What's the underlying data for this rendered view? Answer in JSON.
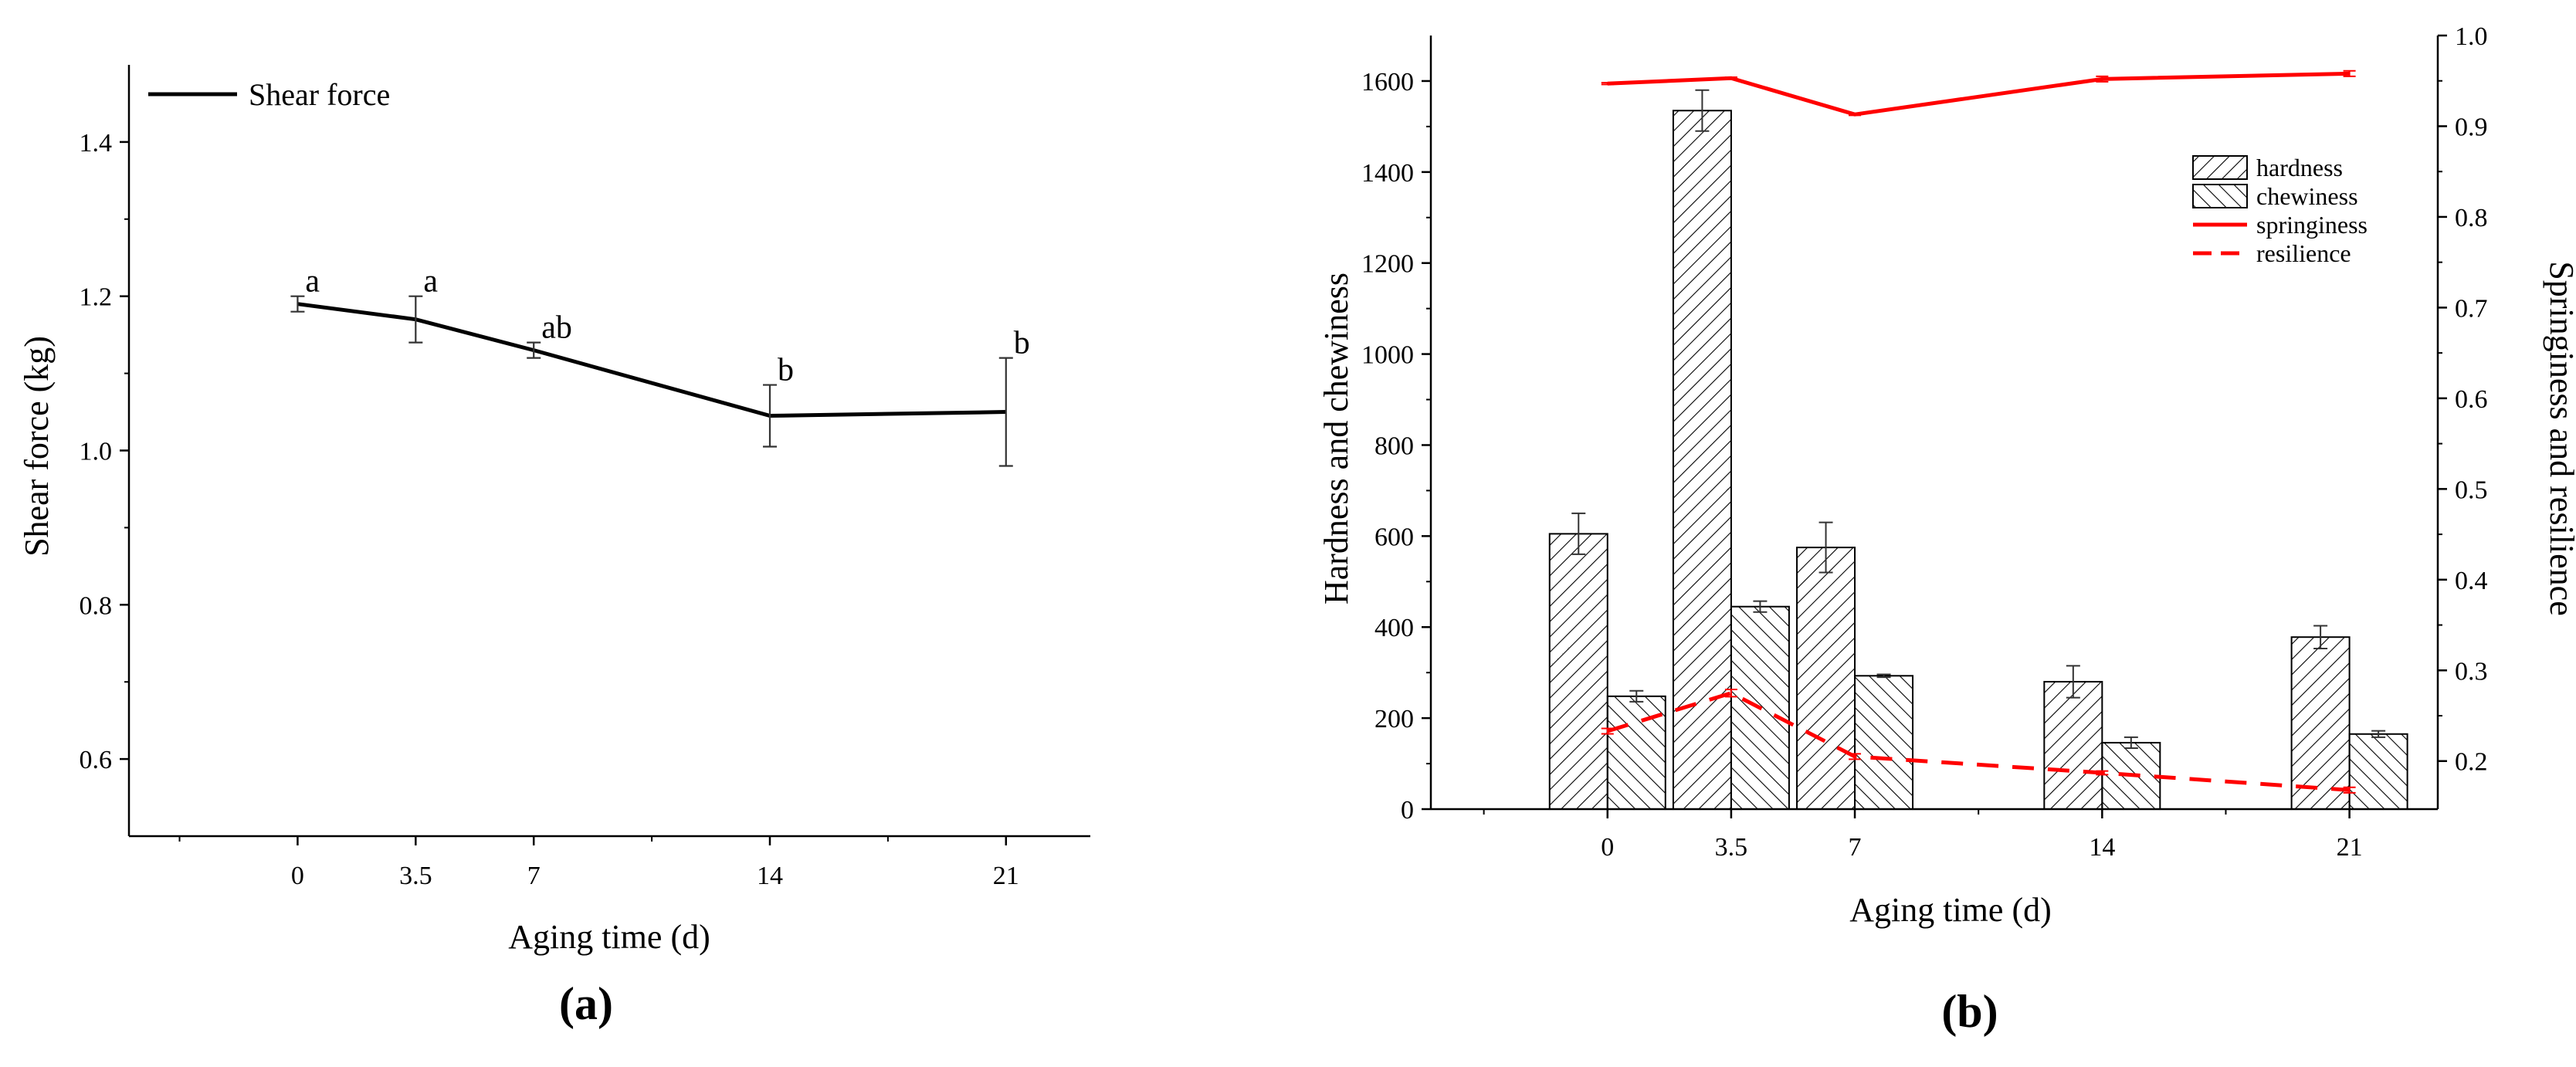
{
  "chart_data": [
    {
      "type": "line",
      "panel_label": "(a)",
      "xlabel": "Aging time (d)",
      "ylabel": "Shear force (kg)",
      "xlim": [
        -5,
        23.5
      ],
      "ylim": [
        0.5,
        1.5
      ],
      "x_ticks": [
        0,
        3.5,
        7,
        14,
        21
      ],
      "x_tick_labels": [
        "0",
        "3.5",
        "7",
        "14",
        "21"
      ],
      "y_ticks": [
        0.6,
        0.8,
        1.0,
        1.2,
        1.4
      ],
      "y_tick_labels": [
        "0.6",
        "0.8",
        "1.0",
        "1.2",
        "1.4"
      ],
      "legend_position": "top-left",
      "grid": false,
      "series": [
        {
          "name": "Shear force",
          "color": "#000000",
          "x": [
            0,
            3.5,
            7,
            14,
            21
          ],
          "values": [
            1.19,
            1.17,
            1.13,
            1.045,
            1.05
          ],
          "errors": [
            0.01,
            0.03,
            0.01,
            0.04,
            0.07
          ],
          "significance": [
            "a",
            "a",
            "ab",
            "b",
            "b"
          ]
        }
      ]
    },
    {
      "type": "bar",
      "panel_label": "(b)",
      "xlabel": "Aging time (d)",
      "ylabel": "Hardness and chewiness",
      "y2label": "Springiness and resilience",
      "xlim": [
        -5,
        23.5
      ],
      "ylim": [
        0,
        1700
      ],
      "y2lim": [
        0.147,
        1.0
      ],
      "x_ticks": [
        0,
        3.5,
        7,
        14,
        21
      ],
      "x_tick_labels": [
        "0",
        "3.5",
        "7",
        "14",
        "21"
      ],
      "y_ticks": [
        0,
        200,
        400,
        600,
        800,
        1000,
        1200,
        1400,
        1600
      ],
      "y_tick_labels": [
        "0",
        "200",
        "400",
        "600",
        "800",
        "1000",
        "1200",
        "1400",
        "1600"
      ],
      "y2_ticks": [
        0.2,
        0.3,
        0.4,
        0.5,
        0.6,
        0.7,
        0.8,
        0.9,
        1.0
      ],
      "y2_tick_labels": [
        "0.2",
        "0.3",
        "0.4",
        "0.5",
        "0.6",
        "0.7",
        "0.8",
        "0.9",
        "1.0"
      ],
      "legend_position": "top-right",
      "grid": false,
      "series": [
        {
          "name": "hardness",
          "kind": "bar",
          "axis": "left",
          "pattern": "hatch-forward",
          "x": [
            0,
            3.5,
            7,
            14,
            21
          ],
          "values": [
            605,
            1535,
            575,
            280,
            378
          ],
          "errors": [
            45,
            45,
            55,
            35,
            25
          ]
        },
        {
          "name": "chewiness",
          "kind": "bar",
          "axis": "left",
          "pattern": "hatch-backward",
          "x": [
            0,
            3.5,
            7,
            14,
            21
          ],
          "values": [
            248,
            445,
            293,
            146,
            165
          ],
          "errors": [
            12,
            12,
            3,
            12,
            7
          ]
        },
        {
          "name": "springiness",
          "kind": "line",
          "axis": "right",
          "color": "#ff0000",
          "dash": "solid",
          "x": [
            0,
            3.5,
            7,
            14,
            21
          ],
          "values": [
            0.947,
            0.953,
            0.913,
            0.952,
            0.958
          ],
          "errors": [
            0.001,
            0.001,
            0.001,
            0.003,
            0.003
          ]
        },
        {
          "name": "resilience",
          "kind": "line",
          "axis": "right",
          "color": "#ff0000",
          "dash": "dashed",
          "x": [
            0,
            3.5,
            7,
            14,
            21
          ],
          "values": [
            0.233,
            0.275,
            0.205,
            0.187,
            0.168
          ],
          "errors": [
            0.003,
            0.004,
            0.003,
            0.002,
            0.003
          ]
        }
      ]
    }
  ]
}
